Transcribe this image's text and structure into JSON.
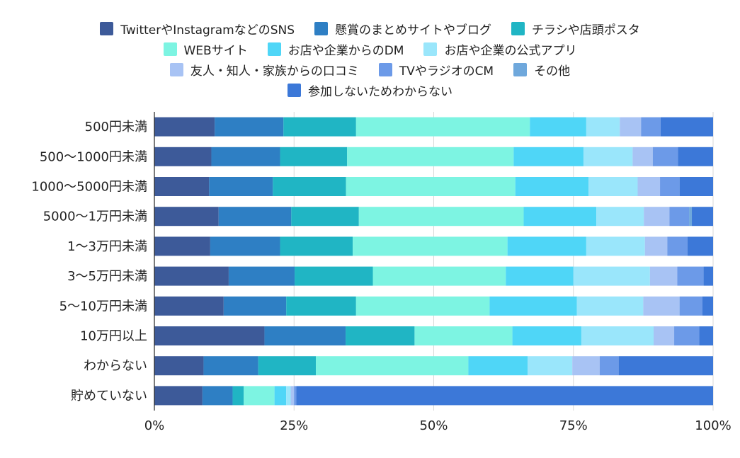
{
  "chart_data": {
    "type": "bar",
    "orientation": "horizontal",
    "stacked": "percent",
    "title": "",
    "xlabel": "",
    "ylabel": "",
    "xlim": [
      0,
      100
    ],
    "x_ticks": [
      "0%",
      "25%",
      "50%",
      "75%",
      "100%"
    ],
    "legend_position": "top",
    "grid": true,
    "categories": [
      "500円未満",
      "500〜1000円未満",
      "1000〜5000円未満",
      "5000〜1万円未満",
      "1〜3万円未満",
      "3〜5万円未満",
      "5〜10万円未満",
      "10万円以上",
      "わからない",
      "貯めていない"
    ],
    "series": [
      {
        "name": "TwitterやInstagramなどのSNS",
        "color": "#3d5a99",
        "values": [
          10.8,
          10.2,
          9.8,
          11.5,
          10.0,
          13.3,
          12.4,
          19.8,
          8.8,
          8.6
        ]
      },
      {
        "name": "懸賞のまとめサイトやブログ",
        "color": "#2e7fc4",
        "values": [
          12.3,
          12.3,
          11.4,
          13.0,
          12.5,
          11.8,
          11.2,
          14.6,
          9.8,
          5.4
        ]
      },
      {
        "name": "チラシや店頭ポスタ",
        "color": "#20b5c4",
        "values": [
          13.0,
          12.0,
          13.1,
          12.1,
          13.0,
          14.0,
          12.5,
          12.4,
          10.3,
          2.0
        ]
      },
      {
        "name": "WEBサイト",
        "color": "#7df4e2",
        "values": [
          31.1,
          29.8,
          30.3,
          29.5,
          27.7,
          23.8,
          23.9,
          17.6,
          27.3,
          5.5
        ]
      },
      {
        "name": "お店や企業からのDM",
        "color": "#4fd6f7",
        "values": [
          10.1,
          12.5,
          13.1,
          13.0,
          14.1,
          12.1,
          15.6,
          12.4,
          10.6,
          2.1
        ]
      },
      {
        "name": "お店や企業の公式アプリ",
        "color": "#9ae6fb",
        "values": [
          6.0,
          8.8,
          8.8,
          8.5,
          10.5,
          13.7,
          11.9,
          13.0,
          8.0,
          0.8
        ]
      },
      {
        "name": "友人・知人・家族からの口コミ",
        "color": "#a8c3f4",
        "values": [
          3.8,
          3.6,
          4.0,
          4.6,
          4.0,
          4.9,
          6.5,
          3.7,
          4.9,
          0.6
        ]
      },
      {
        "name": "TVやラジオのCM",
        "color": "#6c9ae8",
        "values": [
          3.5,
          4.5,
          3.5,
          3.5,
          3.6,
          4.7,
          4.1,
          4.5,
          3.4,
          0.4
        ]
      },
      {
        "name": "その他",
        "color": "#6fa8dc",
        "values": [
          0,
          0,
          0,
          0.5,
          0,
          0,
          0,
          0,
          0,
          0
        ]
      },
      {
        "name": "参加しないためわからない",
        "color": "#3c78d8",
        "values": [
          9.4,
          6.3,
          6.0,
          3.8,
          4.6,
          1.7,
          1.9,
          2.5,
          16.9,
          74.6
        ]
      }
    ]
  }
}
